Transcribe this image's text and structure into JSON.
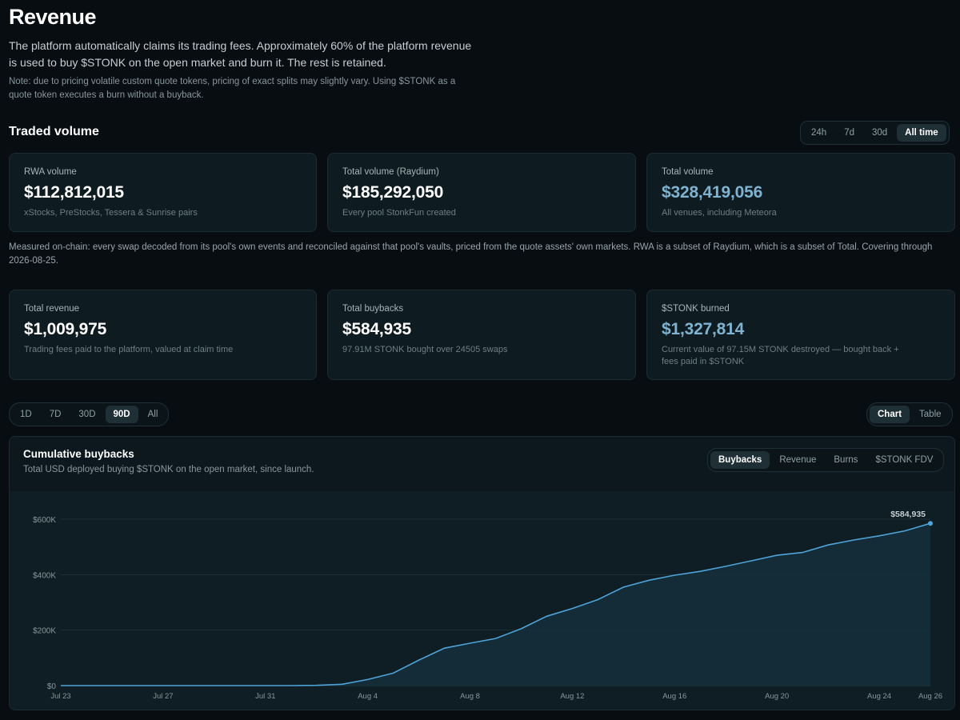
{
  "page": {
    "title": "Revenue",
    "intro": "The platform automatically claims its trading fees. Approximately 60% of the platform revenue is used to buy $STONK on the open market and burn it. The rest is retained.",
    "note": "Note: due to pricing volatile custom quote tokens, pricing of exact splits may slightly vary. Using $STONK as a quote token executes a burn without a buyback."
  },
  "traded_volume": {
    "title": "Traded volume",
    "ranges": [
      "24h",
      "7d",
      "30d",
      "All time"
    ],
    "active_range": "All time",
    "cards": [
      {
        "label": "RWA volume",
        "value": "$112,812,015",
        "sub": "xStocks, PreStocks, Tessera & Sunrise pairs"
      },
      {
        "label": "Total volume (Raydium)",
        "value": "$185,292,050",
        "sub": "Every pool StonkFun created"
      },
      {
        "label": "Total volume",
        "value": "$328,419,056",
        "sub": "All venues, including Meteora"
      }
    ],
    "measured_note": "Measured on-chain: every swap decoded from its pool's own events and reconciled against that pool's vaults, priced from the quote assets' own markets. RWA is a subset of Raydium, which is a subset of Total. Covering through 2026-08-25."
  },
  "revenue_cards": [
    {
      "label": "Total revenue",
      "value": "$1,009,975",
      "sub": "Trading fees paid to the platform, valued at claim time"
    },
    {
      "label": "Total buybacks",
      "value": "$584,935",
      "sub": "97.91M STONK bought over 24505 swaps"
    },
    {
      "label": "$STONK burned",
      "value": "$1,327,814",
      "sub": "Current value of 97.15M STONK destroyed — bought back + fees paid in $STONK"
    }
  ],
  "period_filter": {
    "options": [
      "1D",
      "7D",
      "30D",
      "90D",
      "All"
    ],
    "active": "90D"
  },
  "view_toggle": {
    "options": [
      "Chart",
      "Table"
    ],
    "active": "Chart"
  },
  "chart_panel": {
    "title": "Cumulative buybacks",
    "subtitle": "Total USD deployed buying $STONK on the open market, since launch.",
    "metrics": [
      "Buybacks",
      "Revenue",
      "Burns",
      "$STONK FDV"
    ],
    "active_metric": "Buybacks",
    "end_label": "$584,935"
  },
  "colors": {
    "accent": "#7fb3d1",
    "line": "#4ea3d8",
    "background": "#070d10"
  },
  "chart_data": {
    "type": "area",
    "title": "Cumulative buybacks",
    "xlabel": "",
    "ylabel": "",
    "ylim": [
      0,
      600000
    ],
    "y_ticks": [
      0,
      200000,
      400000,
      600000
    ],
    "y_tick_labels": [
      "$0",
      "$200K",
      "$400K",
      "$600K"
    ],
    "x_ticks": [
      "Jul 23",
      "Jul 27",
      "Jul 31",
      "Aug 4",
      "Aug 8",
      "Aug 12",
      "Aug 16",
      "Aug 20",
      "Aug 24",
      "Aug 26"
    ],
    "grid": true,
    "legend": "none",
    "series": [
      {
        "x": [
          "2026-07-23",
          "2026-07-24",
          "2026-07-25",
          "2026-07-26",
          "2026-07-27",
          "2026-07-28",
          "2026-07-29",
          "2026-07-30",
          "2026-07-31",
          "2026-08-01",
          "2026-08-02",
          "2026-08-03",
          "2026-08-04",
          "2026-08-05",
          "2026-08-06",
          "2026-08-07",
          "2026-08-08",
          "2026-08-09",
          "2026-08-10",
          "2026-08-11",
          "2026-08-12",
          "2026-08-13",
          "2026-08-14",
          "2026-08-15",
          "2026-08-16",
          "2026-08-17",
          "2026-08-18",
          "2026-08-19",
          "2026-08-20",
          "2026-08-21",
          "2026-08-22",
          "2026-08-23",
          "2026-08-24",
          "2026-08-25",
          "2026-08-26"
        ],
        "values": [
          0,
          0,
          0,
          0,
          0,
          0,
          0,
          0,
          0,
          0,
          1000,
          5000,
          22000,
          45000,
          92000,
          135000,
          153000,
          170000,
          205000,
          250000,
          278000,
          310000,
          355000,
          380000,
          398000,
          412000,
          430000,
          450000,
          470000,
          480000,
          507000,
          525000,
          540000,
          558000,
          584935
        ]
      }
    ]
  }
}
